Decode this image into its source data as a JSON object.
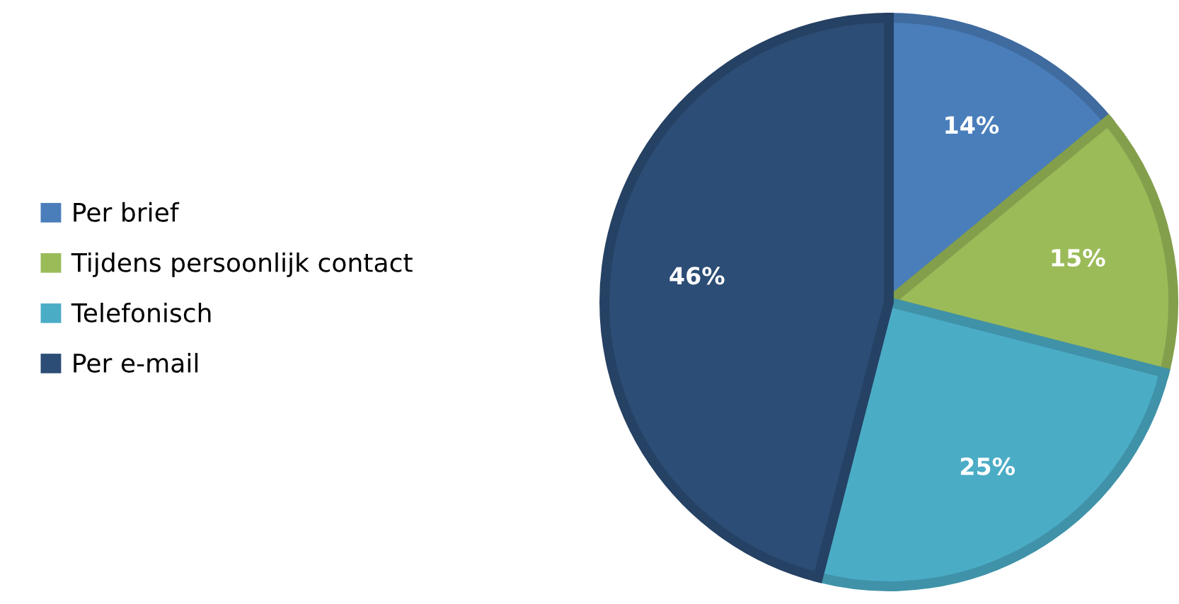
{
  "chart_data": {
    "type": "pie",
    "categories": [
      "Per brief",
      "Tijdens persoonlijk contact",
      "Telefonisch",
      "Per e-mail"
    ],
    "values": [
      14,
      15,
      25,
      46
    ],
    "colors": [
      "#4a7ebb",
      "#9bbb59",
      "#4bacc6",
      "#2c4d75"
    ],
    "value_labels": [
      "14%",
      "15%",
      "25%",
      "46%"
    ],
    "legend": "left"
  }
}
